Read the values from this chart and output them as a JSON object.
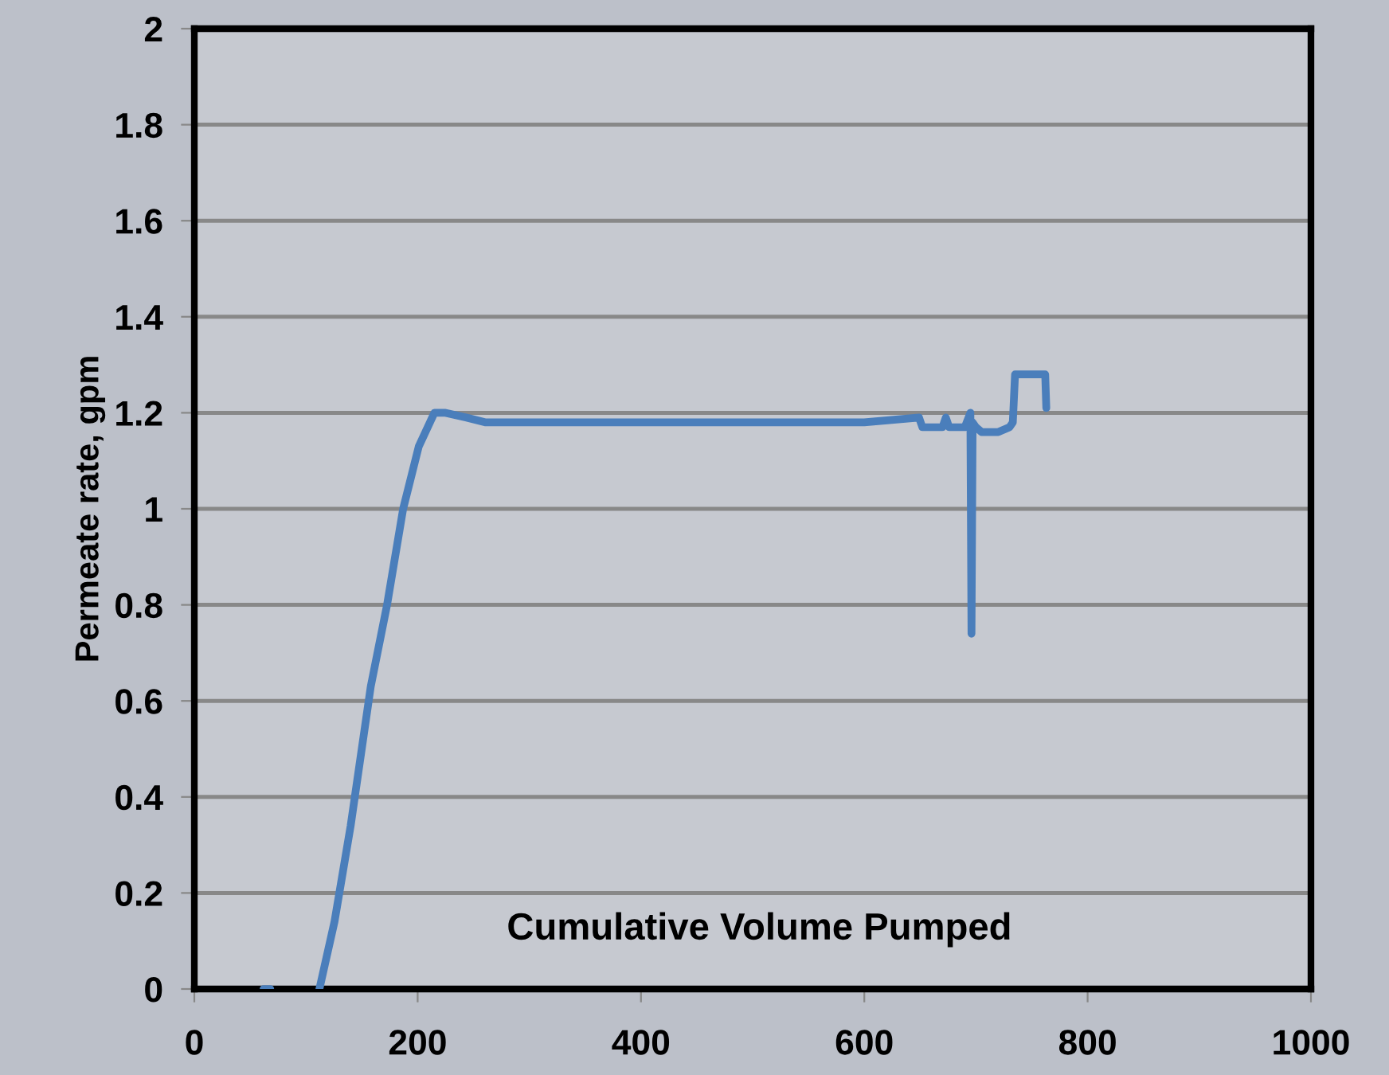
{
  "chart_data": {
    "type": "line",
    "xlabel": "Cumulative Volume Pumped",
    "ylabel": "Permeate rate, gpm",
    "series": [
      {
        "color": "#4a7ebb",
        "x": [
          62,
          68,
          90,
          112,
          125.5,
          140,
          158,
          172.6,
          187,
          201,
          215,
          225,
          244,
          261,
          310,
          400,
          500,
          600,
          649,
          652,
          670,
          673,
          676,
          690,
          695,
          696,
          697,
          700,
          705,
          720,
          730,
          733,
          735,
          750,
          762,
          763
        ],
        "values": [
          0,
          0,
          null,
          0,
          0.14,
          0.34,
          0.63,
          0.8,
          1.0,
          1.13,
          1.2,
          1.2,
          1.19,
          1.18,
          1.18,
          1.18,
          1.18,
          1.18,
          1.19,
          1.17,
          1.17,
          1.19,
          1.17,
          1.17,
          1.2,
          0.74,
          1.18,
          1.17,
          1.16,
          1.16,
          1.17,
          1.18,
          1.28,
          1.28,
          1.28,
          1.21
        ]
      }
    ],
    "xlim": [
      0,
      1000
    ],
    "xticks": [
      0,
      200,
      400,
      600,
      800,
      1000
    ],
    "ylim": [
      0,
      2
    ],
    "yticks": [
      0,
      0.2,
      0.4,
      0.6,
      0.8,
      1,
      1.2,
      1.4,
      1.6,
      1.8,
      2
    ],
    "grid": "y",
    "legend": false,
    "marker": "none",
    "line_style": "solid"
  }
}
